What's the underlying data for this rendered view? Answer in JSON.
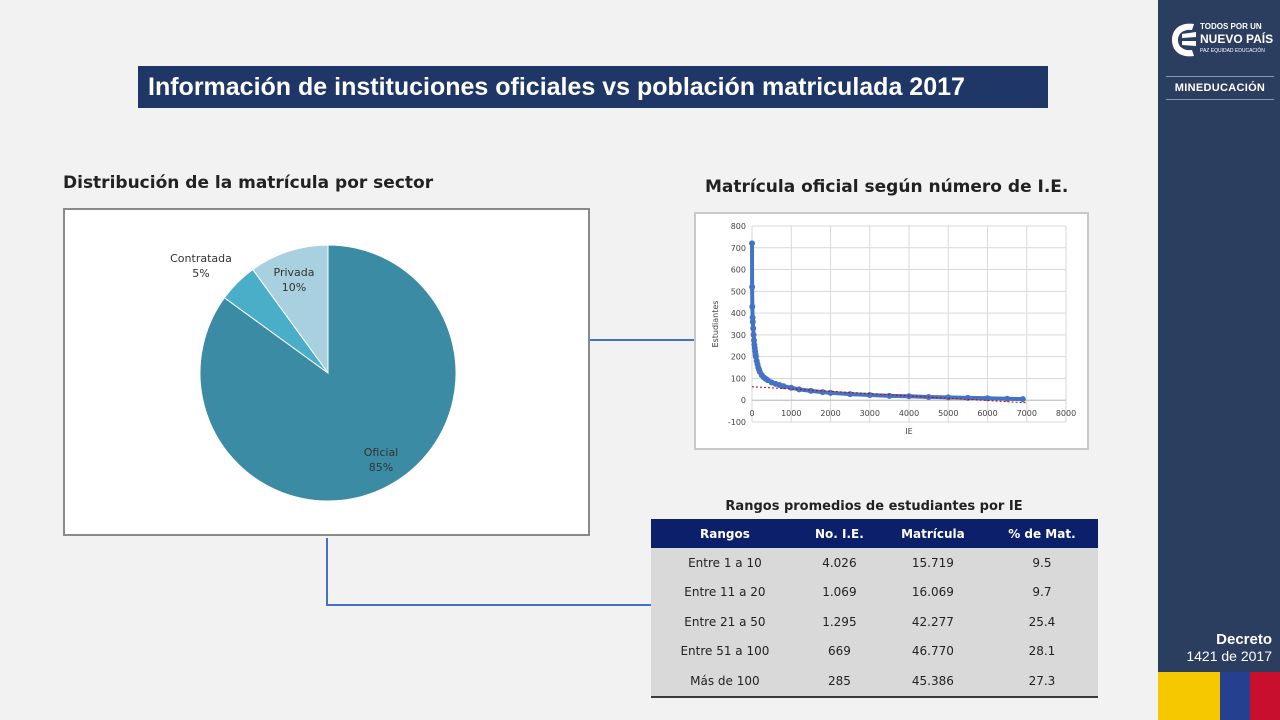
{
  "slide_title": "Información de instituciones oficiales vs población matriculada 2017",
  "pie_section_title": "Distribución de la matrícula por sector",
  "scatter_section_title": "Matrícula oficial según número de I.E.",
  "table_title": "Rangos promedios de estudiantes por IE",
  "sidebar": {
    "logo_line1": "TODOS POR UN",
    "logo_line2": "NUEVO PAÍS",
    "logo_line3": "PAZ  EQUIDAD  EDUCACIÓN",
    "ministry": "MINEDUCACIÓN",
    "decree_label": "Decreto",
    "decree_number": "1421 de 2017",
    "colors": {
      "background": "#2c3e60",
      "yellow": "#f5c800",
      "blue": "#24408e",
      "red": "#c8102e"
    }
  },
  "chart_data": [
    {
      "type": "pie",
      "title": "Distribución de la matrícula por sector",
      "slices": [
        {
          "label": "Oficial",
          "value": 85,
          "display": "85%",
          "color": "#3a8ba3"
        },
        {
          "label": "Contratada",
          "value": 5,
          "display": "5%",
          "color": "#4aaec9"
        },
        {
          "label": "Privada",
          "value": 10,
          "display": "10%",
          "color": "#a9d0df"
        }
      ]
    },
    {
      "type": "scatter",
      "title": "Matrícula oficial según número de I.E.",
      "xlabel": "IE",
      "ylabel": "Estudiantes",
      "xlim": [
        0,
        8000
      ],
      "ylim": [
        -100,
        800
      ],
      "xticks": [
        "0",
        "1000",
        "2000",
        "3000",
        "4000",
        "5000",
        "6000",
        "7000",
        "8000"
      ],
      "yticks": [
        "-100",
        "0",
        "100",
        "200",
        "300",
        "400",
        "500",
        "600",
        "700",
        "800"
      ],
      "grid": true,
      "series": [
        {
          "color": "#4472c4",
          "x": [
            1,
            3,
            8,
            15,
            20,
            30,
            40,
            50,
            60,
            70,
            80,
            90,
            100,
            120,
            140,
            160,
            180,
            200,
            250,
            300,
            350,
            400,
            500,
            600,
            700,
            800,
            1000,
            1200,
            1500,
            1800,
            2000,
            2500,
            3000,
            3500,
            4000,
            4500,
            5000,
            5500,
            6000,
            6500,
            6900
          ],
          "y": [
            720,
            520,
            430,
            380,
            360,
            330,
            300,
            275,
            255,
            240,
            225,
            210,
            200,
            180,
            165,
            150,
            140,
            130,
            115,
            105,
            98,
            92,
            82,
            75,
            70,
            65,
            57,
            50,
            43,
            37,
            34,
            28,
            24,
            20,
            18,
            15,
            13,
            11,
            9,
            7,
            5
          ]
        }
      ],
      "trendline": {
        "color": "#c00000",
        "x": [
          0,
          7000
        ],
        "y": [
          62,
          -12
        ]
      }
    },
    {
      "type": "table",
      "title": "Rangos promedios de estudiantes por IE",
      "columns": [
        "Rangos",
        "No. I.E.",
        "Matrícula",
        "% de Mat."
      ],
      "rows": [
        [
          "Entre 1 a 10",
          "4.026",
          "15.719",
          "9.5"
        ],
        [
          "Entre 11 a 20",
          "1.069",
          "16.069",
          "9.7"
        ],
        [
          "Entre 21 a 50",
          "1.295",
          "42.277",
          "25.4"
        ],
        [
          "Entre 51 a 100",
          "669",
          "46.770",
          "28.1"
        ],
        [
          "Más de 100",
          "285",
          "45.386",
          "27.3"
        ]
      ],
      "header_color": "#0b1f6b",
      "row_color": "#d9d9d9"
    }
  ]
}
